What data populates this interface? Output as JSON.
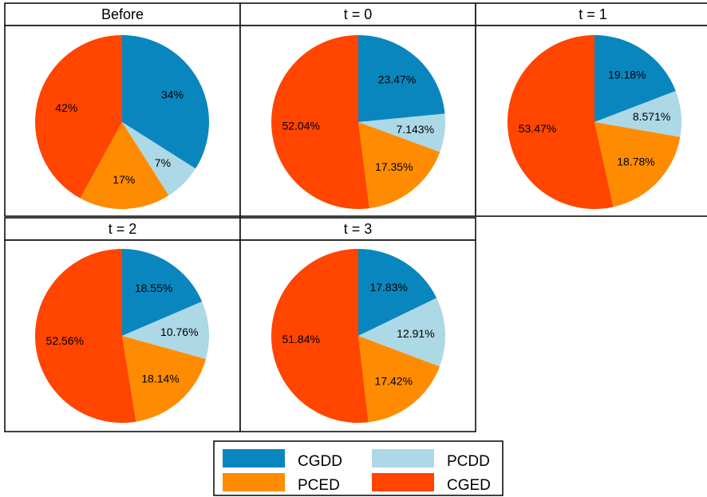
{
  "colors": {
    "CGDD": "#0a86bf",
    "PCDD": "#add8e6",
    "PCED": "#ff8c00",
    "CGED": "#ff4500"
  },
  "chart_data": [
    {
      "type": "pie",
      "title": "Before",
      "labels": [
        "CGDD",
        "PCDD",
        "PCED",
        "CGED"
      ],
      "values": [
        34,
        7,
        17,
        42
      ],
      "value_labels": [
        "34%",
        "7%",
        "17%",
        "42%"
      ]
    },
    {
      "type": "pie",
      "title": "t = 0",
      "labels": [
        "CGDD",
        "PCDD",
        "PCED",
        "CGED"
      ],
      "values": [
        23.47,
        7.143,
        17.35,
        52.04
      ],
      "value_labels": [
        "23.47%",
        "7.143%",
        "17.35%",
        "52.04%"
      ]
    },
    {
      "type": "pie",
      "title": "t = 1",
      "labels": [
        "CGDD",
        "PCDD",
        "PCED",
        "CGED"
      ],
      "values": [
        19.18,
        8.571,
        18.78,
        53.47
      ],
      "value_labels": [
        "19.18%",
        "8.571%",
        "18.78%",
        "53.47%"
      ]
    },
    {
      "type": "pie",
      "title": "t = 2",
      "labels": [
        "CGDD",
        "PCDD",
        "PCED",
        "CGED"
      ],
      "values": [
        18.55,
        10.76,
        18.14,
        52.56
      ],
      "value_labels": [
        "18.55%",
        "10.76%",
        "18.14%",
        "52.56%"
      ]
    },
    {
      "type": "pie",
      "title": "t = 3",
      "labels": [
        "CGDD",
        "PCDD",
        "PCED",
        "CGED"
      ],
      "values": [
        17.83,
        12.91,
        17.42,
        51.84
      ],
      "value_labels": [
        "17.83%",
        "12.91%",
        "17.42%",
        "51.84%"
      ]
    }
  ],
  "legend": {
    "items": [
      {
        "label": "CGDD",
        "key": "CGDD"
      },
      {
        "label": "PCDD",
        "key": "PCDD"
      },
      {
        "label": "PCED",
        "key": "PCED"
      },
      {
        "label": "CGED",
        "key": "CGED"
      }
    ]
  }
}
